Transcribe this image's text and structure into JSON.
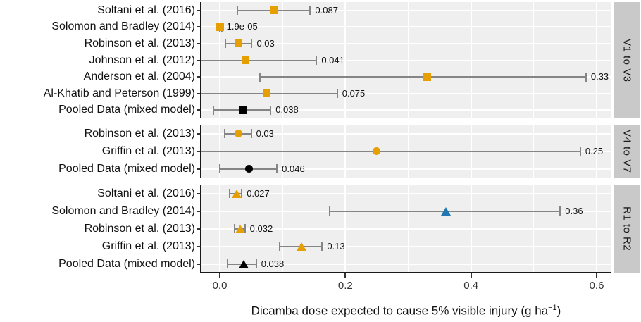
{
  "chart_data": {
    "type": "scatter",
    "subtype": "faceted-forest-plot-with-error-bars",
    "title": "",
    "xlabel_pre": "Dicamba dose expected to cause 5% visible injury (g ha",
    "xlabel_sup": "−1",
    "xlabel_post": ")",
    "x_ticks": [
      {
        "value": 0.0,
        "label": "0.0"
      },
      {
        "value": 0.2,
        "label": "0.2"
      },
      {
        "value": 0.4,
        "label": "0.4"
      },
      {
        "value": 0.6,
        "label": "0.6"
      }
    ],
    "x_minor_gridlines": [
      0.1,
      0.3,
      0.5
    ],
    "xlim": [
      -0.03,
      0.623
    ],
    "grid": true,
    "legend": "none",
    "colors": {
      "orange": "#E69F00",
      "blue": "#1F78B4",
      "black": "#000000",
      "error_bar": "#858585",
      "panel_background": "#EFEFEF",
      "strip_background": "#C9C9C9",
      "gridline": "#FFFFFF"
    },
    "panels": [
      {
        "strip": "V1 to V3",
        "marker": "square",
        "studies": [
          {
            "label": "Soltani et al. (2016)",
            "value": 0.087,
            "value_label": "0.087",
            "ci": [
              0.028,
              0.144
            ],
            "color": "orange"
          },
          {
            "label": "Solomon and Bradley (2014)",
            "value": 1.9e-05,
            "value_label": "1.9e-05",
            "ci": [
              0.0,
              0.003
            ],
            "color": "orange"
          },
          {
            "label": "Robinson et al. (2013)",
            "value": 0.03,
            "value_label": "0.03",
            "ci": [
              0.009,
              0.051
            ],
            "color": "orange"
          },
          {
            "label": "Johnson et al. (2012)",
            "value": 0.041,
            "value_label": "0.041",
            "ci": [
              -0.029,
              0.154
            ],
            "color": "orange",
            "ci_low_clipped": true
          },
          {
            "label": "Anderson et al. (2004)",
            "value": 0.33,
            "value_label": "0.33",
            "ci": [
              0.064,
              0.583
            ],
            "color": "orange"
          },
          {
            "label": "Al-Khatib and Peterson (1999)",
            "value": 0.075,
            "value_label": "0.075",
            "ci": [
              -0.029,
              0.187
            ],
            "color": "orange",
            "ci_low_clipped": true
          },
          {
            "label": "Pooled Data (mixed model)",
            "value": 0.038,
            "value_label": "0.038",
            "ci": [
              -0.01,
              0.081
            ],
            "color": "black"
          }
        ]
      },
      {
        "strip": "V4 to V7",
        "marker": "circle",
        "studies": [
          {
            "label": "Robinson et al. (2013)",
            "value": 0.03,
            "value_label": "0.03",
            "ci": [
              0.008,
              0.05
            ],
            "color": "orange"
          },
          {
            "label": "Griffin et al. (2013)",
            "value": 0.25,
            "value_label": "0.25",
            "ci": [
              -0.029,
              0.574
            ],
            "color": "orange",
            "ci_low_clipped": true
          },
          {
            "label": "Pooled Data (mixed model)",
            "value": 0.046,
            "value_label": "0.046",
            "ci": [
              0.0,
              0.091
            ],
            "color": "black"
          }
        ]
      },
      {
        "strip": "R1 to R2",
        "marker": "triangle",
        "studies": [
          {
            "label": "Soltani et al. (2016)",
            "value": 0.027,
            "value_label": "0.027",
            "ci": [
              0.016,
              0.035
            ],
            "color": "orange"
          },
          {
            "label": "Solomon and Bradley (2014)",
            "value": 0.36,
            "value_label": "0.36",
            "ci": [
              0.175,
              0.542
            ],
            "color": "blue"
          },
          {
            "label": "Robinson et al. (2013)",
            "value": 0.032,
            "value_label": "0.032",
            "ci": [
              0.024,
              0.04
            ],
            "color": "orange"
          },
          {
            "label": "Griffin et al. (2013)",
            "value": 0.13,
            "value_label": "0.13",
            "ci": [
              0.095,
              0.163
            ],
            "color": "orange"
          },
          {
            "label": "Pooled Data (mixed model)",
            "value": 0.038,
            "value_label": "0.038",
            "ci": [
              0.012,
              0.058
            ],
            "color": "black"
          }
        ]
      }
    ]
  }
}
